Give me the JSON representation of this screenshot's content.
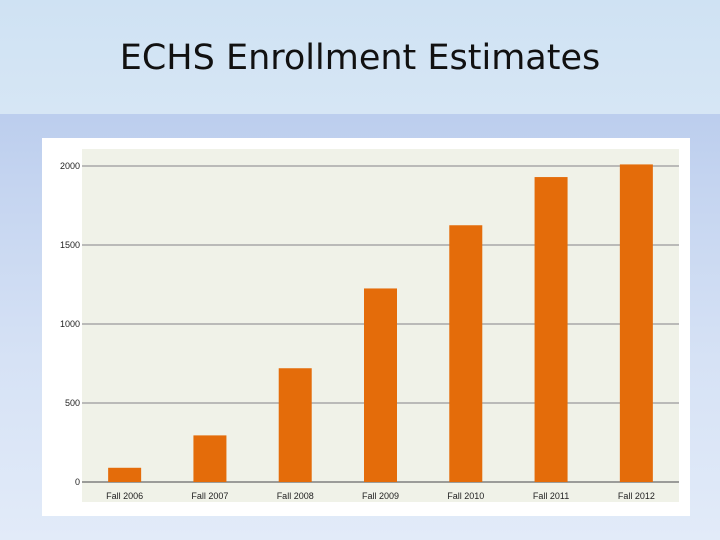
{
  "slide": {
    "title": "ECHS Enrollment Estimates"
  },
  "chart_data": {
    "type": "bar",
    "categories": [
      "Fall 2006",
      "Fall 2007",
      "Fall 2008",
      "Fall 2009",
      "Fall 2010",
      "Fall 2011",
      "Fall 2012"
    ],
    "values": [
      90,
      295,
      720,
      1225,
      1625,
      1930,
      2010
    ],
    "yticks": [
      "0",
      "500",
      "1000",
      "1500",
      "2000"
    ],
    "ylim": [
      0,
      2000
    ],
    "grid": true,
    "colors": {
      "bar": "#e46c0a",
      "plot_bg": "#f0f2e8",
      "grid": "#a8a8a8",
      "axis": "#7f7f7f"
    }
  }
}
